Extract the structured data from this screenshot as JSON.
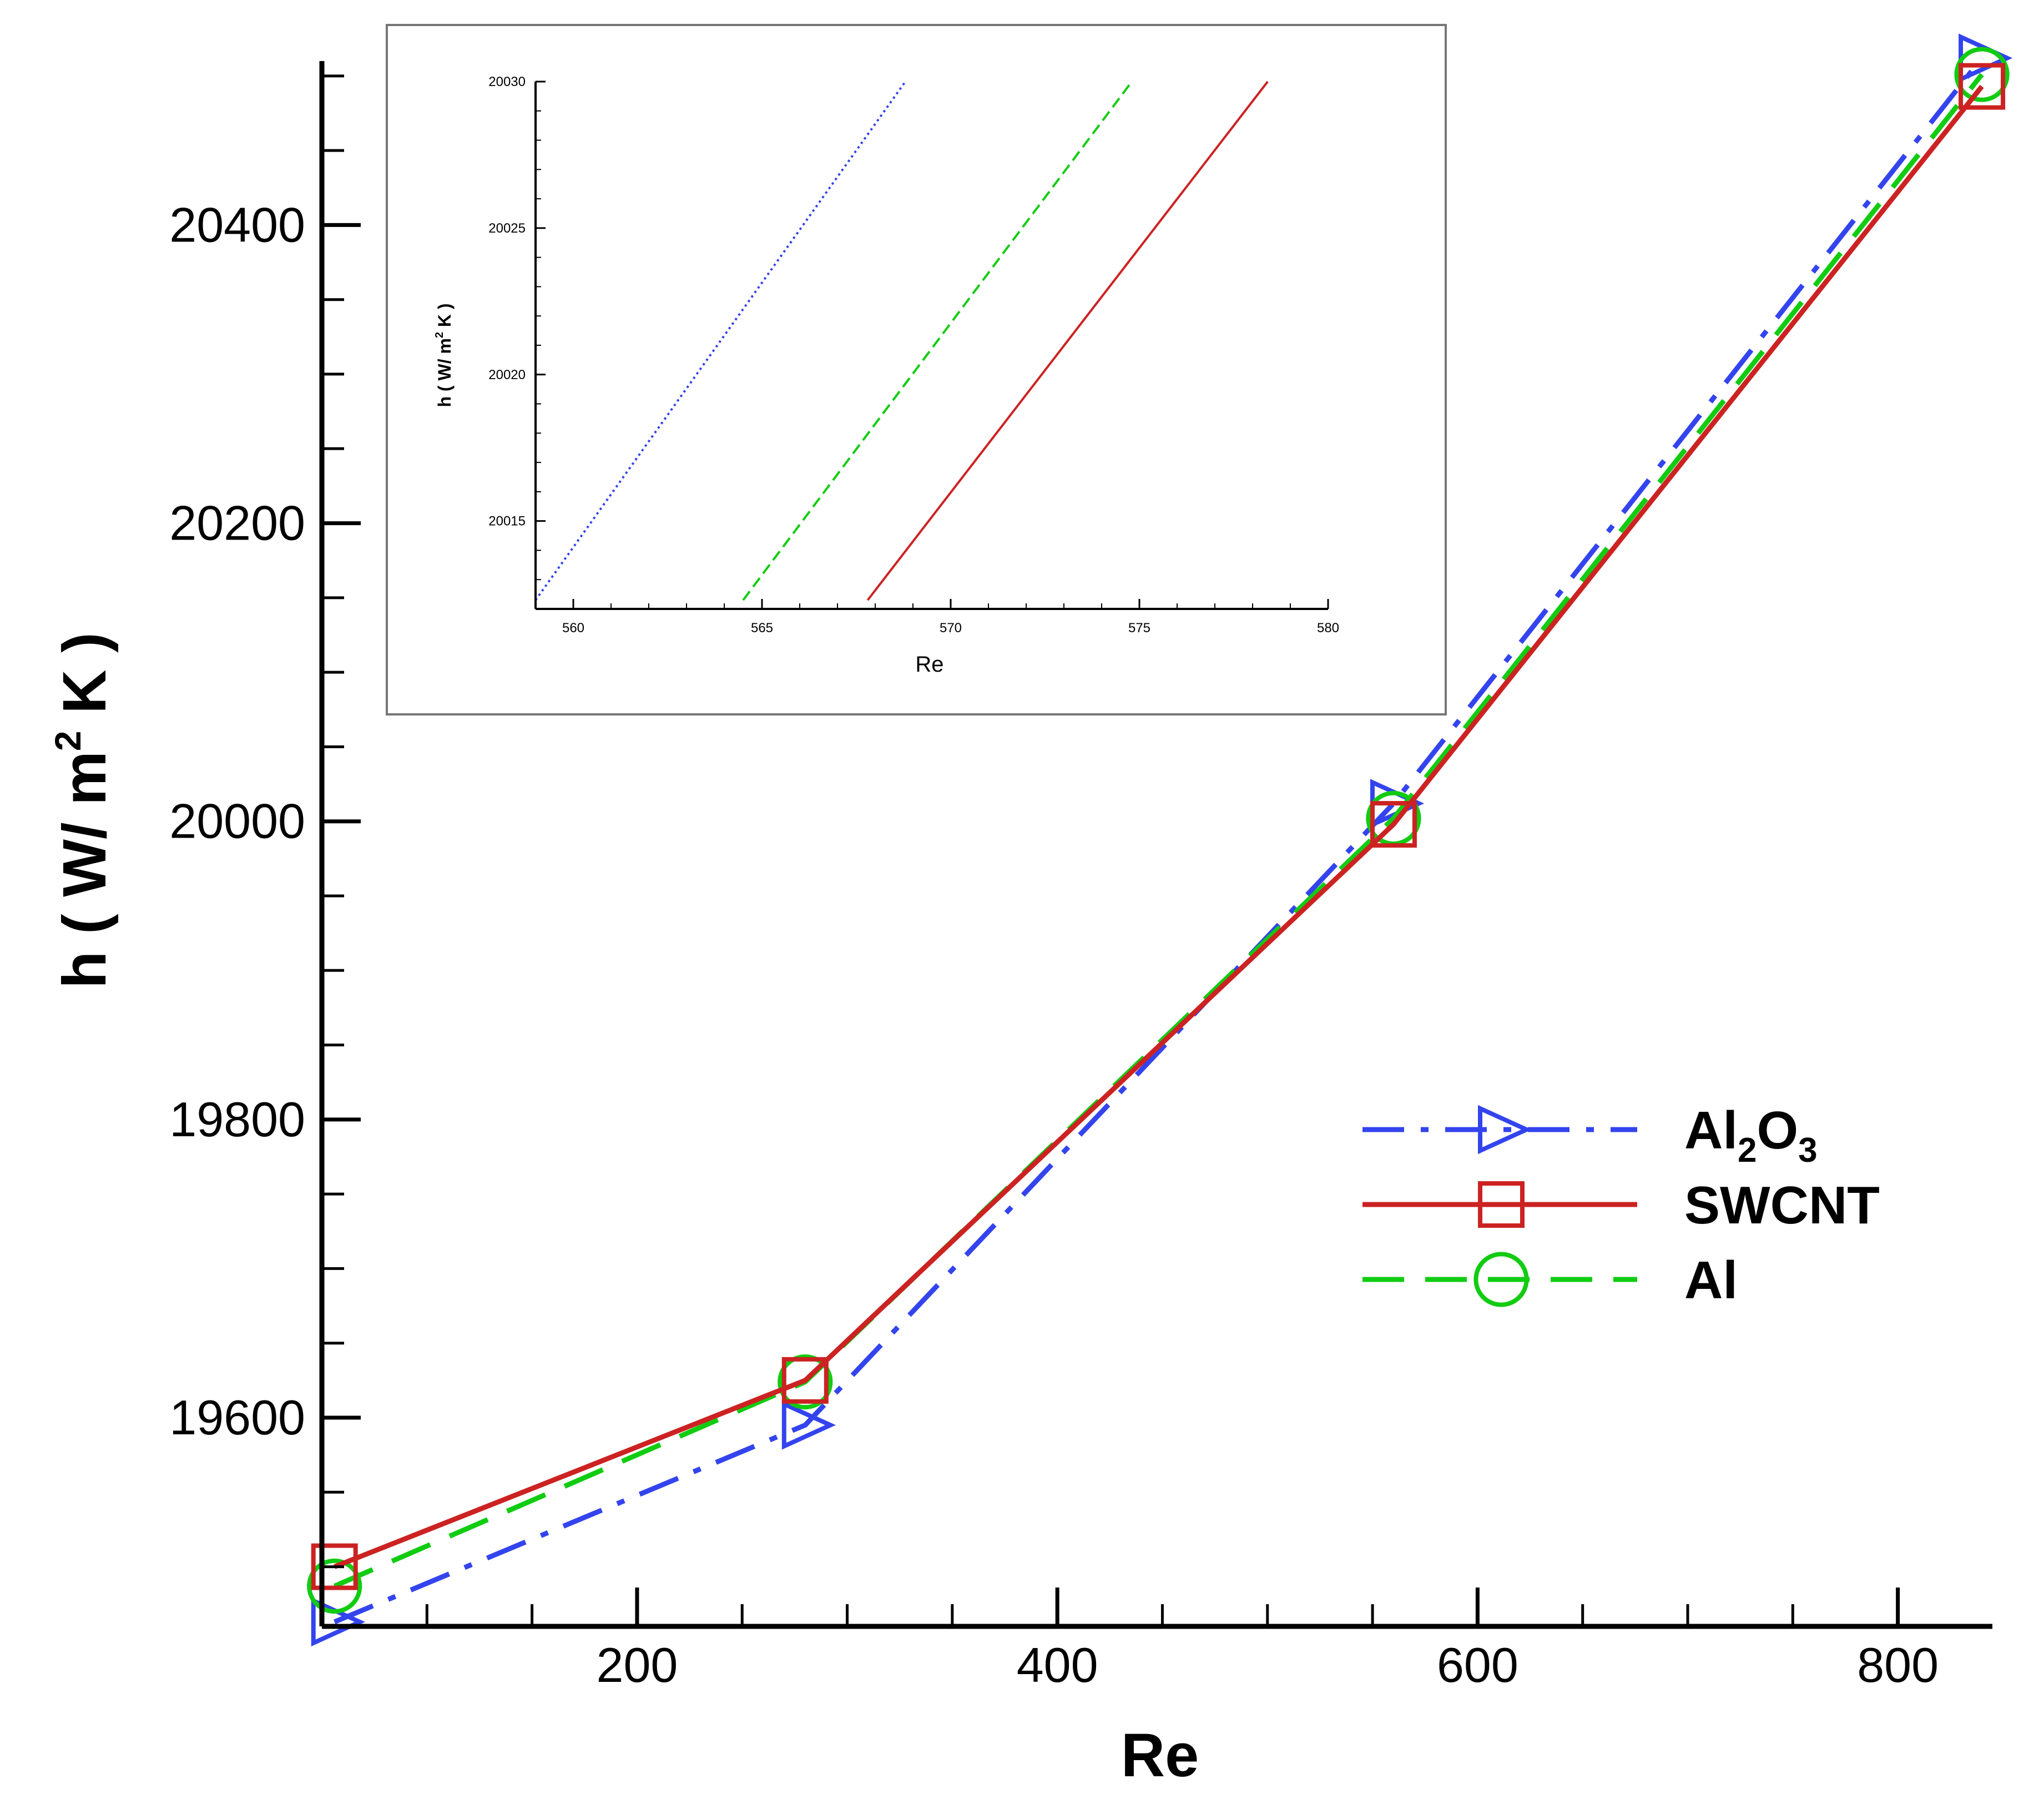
{
  "chart_data": [
    {
      "type": "line",
      "title": "",
      "xlabel": "Re",
      "ylabel": "h ( W/ m² K )",
      "ylabel_parts": {
        "pre": "h ( W/ m",
        "sup": "2",
        "post": " K )"
      },
      "xlim": [
        50,
        845
      ],
      "ylim": [
        19460,
        20510
      ],
      "x_ticks": [
        200,
        400,
        600,
        800
      ],
      "x_tick_labels": [
        "200",
        "400",
        "600",
        "800"
      ],
      "y_ticks": [
        19600,
        19800,
        20000,
        20200,
        20400
      ],
      "y_tick_labels": [
        "19600",
        "19800",
        "20000",
        "20200",
        "20400"
      ],
      "x": [
        56,
        280,
        560,
        840
      ],
      "series": [
        {
          "name": "Al2O3",
          "label_parts": [
            "Al",
            "2",
            "O",
            "3"
          ],
          "color": "#3344ee",
          "dash": "dashdot",
          "marker": "triangle-right",
          "values": [
            19463,
            19595,
            20012,
            20512
          ]
        },
        {
          "name": "SWCNT",
          "color": "#cc2222",
          "dash": "solid",
          "marker": "square",
          "values": [
            19500,
            19625,
            19998,
            20493
          ]
        },
        {
          "name": "Al",
          "color": "#11cc11",
          "dash": "dashed",
          "marker": "circle",
          "values": [
            19487,
            19624,
            20002,
            20501
          ]
        }
      ],
      "legend": "right-middle"
    },
    {
      "type": "line",
      "role": "inset-zoom",
      "xlabel": "Re",
      "ylabel": "h ( W/ m² K )",
      "ylabel_parts": {
        "pre": "h ( W/ m",
        "sup": "2",
        "post": " K )"
      },
      "xlim": [
        559,
        580
      ],
      "ylim": [
        20012,
        20030
      ],
      "x_ticks": [
        560,
        565,
        570,
        575,
        580
      ],
      "x_tick_labels": [
        "560",
        "565",
        "570",
        "575",
        "580"
      ],
      "y_ticks": [
        20015,
        20020,
        20025,
        20030
      ],
      "y_tick_labels": [
        "20015",
        "20020",
        "20025",
        "20030"
      ],
      "series": [
        {
          "name": "Al2O3",
          "color": "#3344ee",
          "dash": "dotted",
          "points": [
            [
              559,
              20012.3
            ],
            [
              568.8,
              20030
            ]
          ]
        },
        {
          "name": "Al",
          "color": "#11cc11",
          "dash": "dashed",
          "points": [
            [
              564.5,
              20012.3
            ],
            [
              574.8,
              20030
            ]
          ]
        },
        {
          "name": "SWCNT",
          "color": "#cc2222",
          "dash": "solid",
          "points": [
            [
              567.8,
              20012.3
            ],
            [
              578.4,
              20030
            ]
          ]
        }
      ]
    }
  ]
}
